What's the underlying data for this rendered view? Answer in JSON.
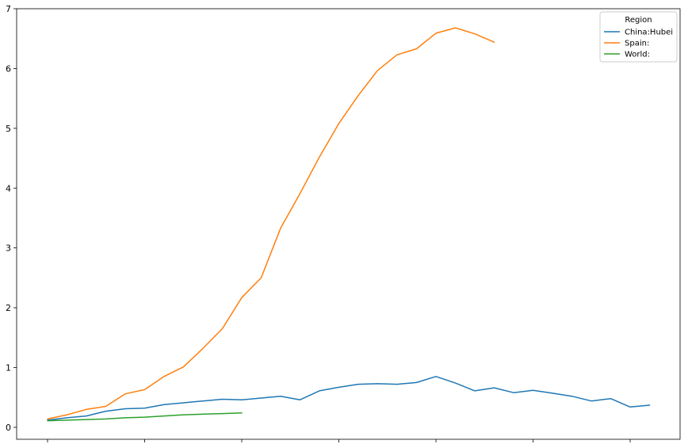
{
  "chart_data": {
    "type": "line",
    "title": "",
    "xlabel": "",
    "ylabel": "",
    "ylim": [
      -0.2,
      7
    ],
    "yticks": [
      0,
      1,
      2,
      3,
      4,
      5,
      6,
      7
    ],
    "xtick_count": 7,
    "x_tick_labels_visible": false,
    "grid": false,
    "legend": {
      "title": "Region",
      "placement": "top-right"
    },
    "series": [
      {
        "name": "China:Hubei",
        "color": "#1f77b4",
        "values": [
          0.12,
          0.16,
          0.19,
          0.27,
          0.31,
          0.32,
          0.38,
          0.41,
          0.44,
          0.47,
          0.46,
          0.49,
          0.52,
          0.46,
          0.61,
          0.67,
          0.72,
          0.73,
          0.72,
          0.75,
          0.85,
          0.74,
          0.61,
          0.66,
          0.58,
          0.62,
          0.57,
          0.52,
          0.44,
          0.48,
          0.34,
          0.37
        ]
      },
      {
        "name": "Spain:",
        "color": "#ff7f0e",
        "values": [
          0.14,
          0.21,
          0.3,
          0.35,
          0.56,
          0.63,
          0.85,
          1.01,
          1.32,
          1.65,
          2.17,
          2.5,
          3.33,
          3.91,
          4.52,
          5.08,
          5.55,
          5.97,
          6.23,
          6.33,
          6.59,
          6.68,
          6.58,
          6.44
        ]
      },
      {
        "name": "World:",
        "color": "#2ca02c",
        "values": [
          0.11,
          0.12,
          0.13,
          0.14,
          0.16,
          0.17,
          0.19,
          0.21,
          0.22,
          0.23,
          0.24
        ]
      }
    ]
  }
}
